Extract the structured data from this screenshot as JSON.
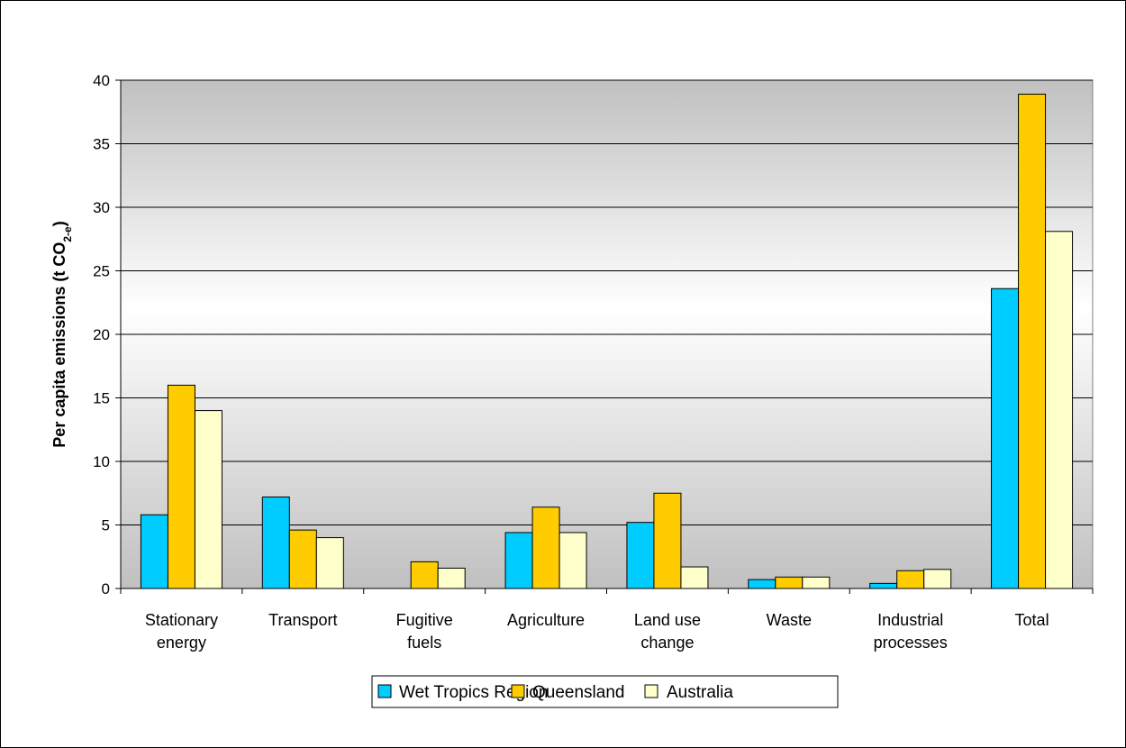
{
  "chart_data": {
    "type": "bar",
    "title": "",
    "xlabel": "",
    "ylabel": "Per capita emissions (t CO",
    "ylabel_sub": "2-e",
    "ylabel_end": ")",
    "ylim": [
      0,
      40
    ],
    "yticks": [
      0,
      5,
      10,
      15,
      20,
      25,
      30,
      35,
      40
    ],
    "grid": true,
    "legend_position": "bottom",
    "categories": [
      [
        "Stationary",
        "energy"
      ],
      [
        "Transport"
      ],
      [
        "Fugitive",
        "fuels"
      ],
      [
        "Agriculture"
      ],
      [
        "Land use",
        "change"
      ],
      [
        "Waste"
      ],
      [
        "Industrial",
        "processes"
      ],
      [
        "Total"
      ]
    ],
    "series": [
      {
        "name": "Wet Tropics Region",
        "color": "#00ccff",
        "values": [
          5.8,
          7.2,
          0.0,
          4.4,
          5.2,
          0.7,
          0.4,
          23.6
        ]
      },
      {
        "name": "Queensland",
        "color": "#ffcc00",
        "values": [
          16.0,
          4.6,
          2.1,
          6.4,
          7.5,
          0.9,
          1.4,
          38.9
        ]
      },
      {
        "name": "Australia",
        "color": "#ffffcc",
        "values": [
          14.0,
          4.0,
          1.6,
          4.4,
          1.7,
          0.9,
          1.5,
          28.1
        ]
      }
    ]
  }
}
